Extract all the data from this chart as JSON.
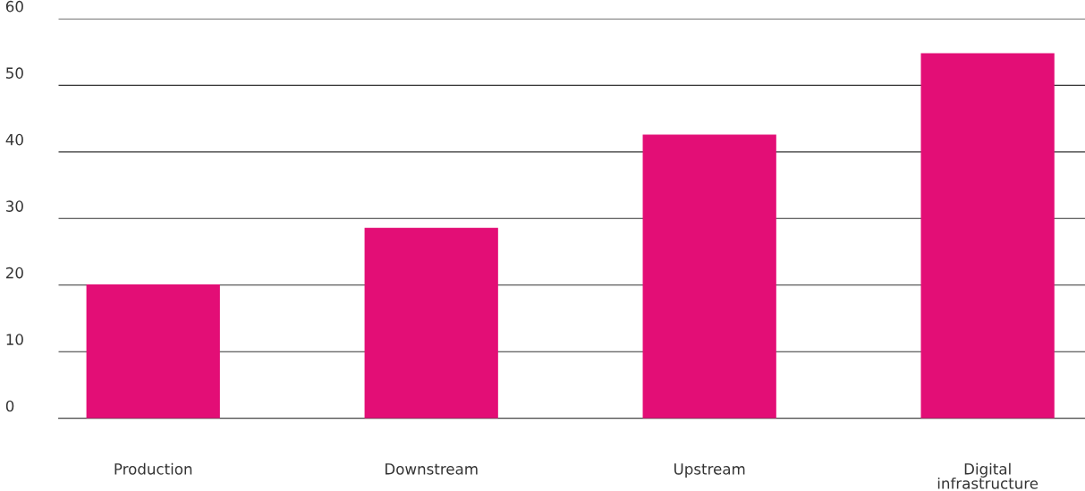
{
  "chart_data": {
    "type": "bar",
    "categories": [
      "Production",
      "Downstream",
      "Upstream",
      "Digital infrastructure"
    ],
    "values": [
      20.1,
      28.6,
      42.6,
      54.8
    ],
    "color": "#e30e76",
    "ylim": [
      0,
      60
    ],
    "yticks": [
      0,
      10,
      20,
      30,
      40,
      50,
      60
    ],
    "grid": "y"
  }
}
